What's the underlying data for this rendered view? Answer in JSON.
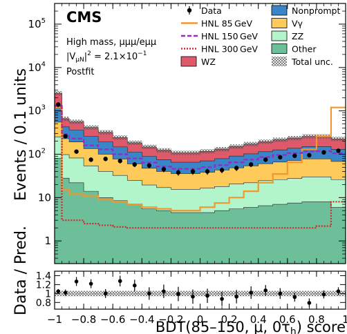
{
  "chart_data": {
    "type": "stacked-histogram",
    "ylabel": "Events / 0.1 units",
    "ratio_ylabel": "Data / Pred.",
    "xlabel": "BDT(85–150, μ, 0τ",
    "xlabel_sub": "h",
    "xlabel_end": ") score",
    "cms_label": "CMS",
    "annotations": [
      "High mass, μμμ/eμμ",
      "|V",
      "μN",
      "|",
      "2",
      " = 2.1×10",
      "−1",
      "Postfit"
    ],
    "xlim": [
      -1,
      1
    ],
    "ylim": [
      0.3,
      300000
    ],
    "yscale": "log",
    "ratio_ylim": [
      0.65,
      1.5
    ],
    "x_ticks": [
      "−1",
      "−0.8",
      "−0.6",
      "−0.4",
      "−0.2",
      "0",
      "0.2",
      "0.4",
      "0.6",
      "0.8",
      "1"
    ],
    "y_ticks": [
      "1",
      "10",
      "10",
      "10",
      "10",
      "10"
    ],
    "y_tick_exp": [
      "",
      "",
      "2",
      "3",
      "4",
      "5"
    ],
    "ratio_ticks": [
      "0.8",
      "1",
      "1.2",
      "1.4"
    ],
    "bin_edges": [
      -1.0,
      -0.95,
      -0.9,
      -0.8,
      -0.7,
      -0.6,
      -0.5,
      -0.4,
      -0.3,
      -0.2,
      -0.1,
      0.0,
      0.1,
      0.2,
      0.3,
      0.4,
      0.5,
      0.6,
      0.7,
      0.8,
      0.9,
      1.0
    ],
    "stack": [
      {
        "name": "Other",
        "color": "#6cbf99",
        "values": [
          80,
          28,
          22,
          14,
          10,
          8.5,
          7,
          5.5,
          5,
          4.5,
          4.5,
          4.5,
          5,
          5.5,
          6,
          6.5,
          7,
          7.5,
          8,
          8,
          6
        ]
      },
      {
        "name": "ZZ",
        "color": "#b2f5cb",
        "values": [
          170,
          70,
          60,
          40,
          30,
          24,
          18,
          14,
          12,
          11,
          11,
          12,
          13,
          15,
          16,
          18,
          19,
          20,
          22,
          22,
          20
        ]
      },
      {
        "name": "Vγ",
        "color": "#fecb5a",
        "values": [
          300,
          130,
          110,
          80,
          60,
          45,
          35,
          28,
          23,
          20,
          20,
          22,
          25,
          28,
          32,
          36,
          40,
          44,
          48,
          48,
          42
        ]
      },
      {
        "name": "Nonprompt",
        "color": "#3a85c7",
        "values": [
          800,
          200,
          170,
          125,
          95,
          70,
          52,
          42,
          35,
          30,
          30,
          32,
          36,
          42,
          48,
          54,
          60,
          66,
          72,
          72,
          62
        ]
      },
      {
        "name": "WZ",
        "color": "#de5a6a",
        "values": [
          1200,
          230,
          200,
          155,
          125,
          95,
          72,
          58,
          48,
          42,
          42,
          46,
          52,
          60,
          70,
          80,
          90,
          98,
          108,
          108,
          95
        ]
      }
    ],
    "data": {
      "name": "Data",
      "x": [
        -0.975,
        -0.925,
        -0.85,
        -0.75,
        -0.65,
        -0.55,
        -0.45,
        -0.35,
        -0.25,
        -0.15,
        -0.05,
        0.05,
        0.15,
        0.25,
        0.35,
        0.45,
        0.55,
        0.65,
        0.75,
        0.85,
        0.95
      ],
      "y": [
        1400,
        260,
        115,
        75,
        78,
        70,
        58,
        55,
        45,
        38,
        40,
        40,
        43,
        48,
        58,
        75,
        85,
        92,
        95,
        110,
        120
      ]
    },
    "hnl": [
      {
        "name": "HNL 85 GeV",
        "color": "#f2962e",
        "dash": "",
        "values": [
          1200,
          15,
          12,
          11,
          9,
          8,
          7,
          6,
          5.5,
          5,
          5,
          6,
          7.5,
          10,
          14,
          22,
          35,
          65,
          130,
          260,
          1200
        ]
      },
      {
        "name": "HNL 150 GeV",
        "color": "#9b27c4",
        "dash": "6,3",
        "values": [
          1300,
          290,
          230,
          160,
          130,
          100,
          80,
          64,
          52,
          46,
          46,
          50,
          56,
          65,
          75,
          86,
          96,
          106,
          116,
          118,
          105
        ]
      },
      {
        "name": "HNL 300 GeV",
        "color": "#d6272a",
        "dash": "2,2",
        "values": [
          1250,
          3,
          3,
          2.5,
          2.3,
          2.1,
          2,
          2,
          2,
          2,
          2,
          2,
          2,
          2,
          2,
          2,
          2,
          2,
          2,
          2.2,
          8
        ]
      }
    ],
    "legend": [
      {
        "label": "Data",
        "kind": "data",
        "col": 0
      },
      {
        "label": "HNL 85 GeV",
        "kind": "line",
        "color": "#f2962e",
        "dash": "",
        "col": 0
      },
      {
        "label": "HNL 150 GeV",
        "kind": "line",
        "color": "#9b27c4",
        "dash": "6,3",
        "col": 0
      },
      {
        "label": "HNL 300 GeV",
        "kind": "line",
        "color": "#d6272a",
        "dash": "2,2",
        "col": 0
      },
      {
        "label": "WZ",
        "kind": "box",
        "color": "#de5a6a",
        "col": 0
      },
      {
        "label": "Nonprompt",
        "kind": "box",
        "color": "#3a85c7",
        "col": 1
      },
      {
        "label": "Vγ",
        "kind": "box",
        "color": "#fecb5a",
        "col": 1
      },
      {
        "label": "ZZ",
        "kind": "box",
        "color": "#b2f5cb",
        "col": 1
      },
      {
        "label": "Other",
        "kind": "box",
        "color": "#6cbf99",
        "col": 1
      },
      {
        "label": "Total unc.",
        "kind": "hatch",
        "col": 1
      }
    ],
    "ratio": {
      "x": [
        -0.975,
        -0.925,
        -0.85,
        -0.75,
        -0.65,
        -0.55,
        -0.45,
        -0.35,
        -0.25,
        -0.15,
        -0.05,
        0.05,
        0.15,
        0.25,
        0.35,
        0.45,
        0.55,
        0.65,
        0.75,
        0.85,
        0.95
      ],
      "y": [
        1.05,
        1.02,
        1.27,
        1.22,
        1.0,
        1.28,
        1.18,
        1.0,
        1.05,
        0.99,
        0.93,
        0.95,
        0.88,
        0.93,
        1.02,
        1.07,
        1.0,
        0.92,
        0.79,
        0.98,
        1.05
      ],
      "err": [
        0.05,
        0.07,
        0.1,
        0.1,
        0.1,
        0.12,
        0.13,
        0.14,
        0.15,
        0.16,
        0.16,
        0.16,
        0.16,
        0.15,
        0.14,
        0.12,
        0.12,
        0.1,
        0.1,
        0.09,
        0.09
      ]
    }
  }
}
